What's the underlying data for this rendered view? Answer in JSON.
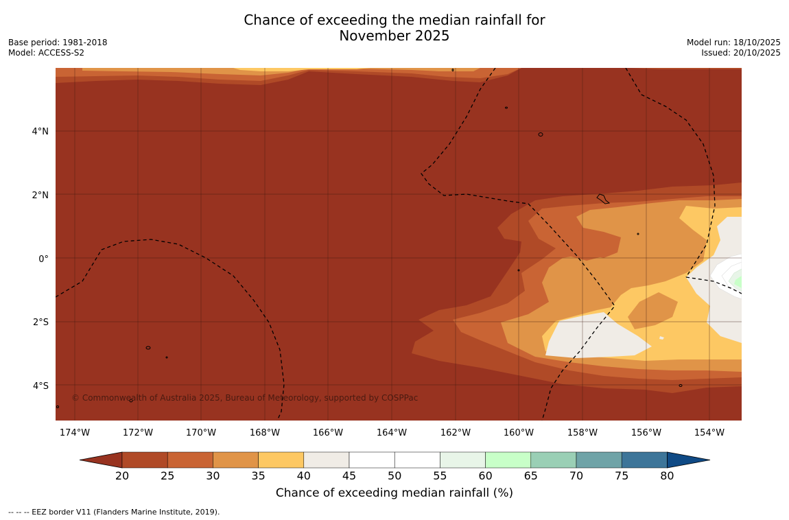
{
  "title_line1": "Chance of exceeding the median rainfall for",
  "title_line2": "November 2025",
  "meta": {
    "base_period": "Base period: 1981-2018",
    "model": "Model: ACCESS-S2",
    "model_run": "Model run: 18/10/2025",
    "issued": "Issued: 20/10/2025"
  },
  "map": {
    "lon_range": [
      -174.6,
      -152.9
    ],
    "lat_range": [
      -5.2,
      5.85
    ],
    "lon_ticks": [
      "174°W",
      "172°W",
      "170°W",
      "168°W",
      "166°W",
      "164°W",
      "162°W",
      "160°W",
      "158°W",
      "156°W",
      "154°W"
    ],
    "lat_ticks": [
      "4°N",
      "2°N",
      "0°",
      "2°S",
      "4°S"
    ],
    "copyright": "© Commonwealth of Australia 2025, Bureau of Meteorology, supported by COSPPac"
  },
  "colorbar": {
    "ticks": [
      "20",
      "25",
      "30",
      "35",
      "40",
      "45",
      "50",
      "55",
      "60",
      "65",
      "70",
      "75",
      "80"
    ],
    "colors": [
      "#983320",
      "#b04a27",
      "#c96434",
      "#e09448",
      "#fdc863",
      "#f0ece6",
      "#ffffff",
      "#ffffff",
      "#e8f5e8",
      "#c8ffc8",
      "#9acfb5",
      "#6fa3a7",
      "#3d7599",
      "#0f4a85"
    ],
    "label": "Chance of exceeding median rainfall (%)"
  },
  "footnote": "--  --  -- EEZ border V11 (Flanders Marine Institute, 2019)."
}
